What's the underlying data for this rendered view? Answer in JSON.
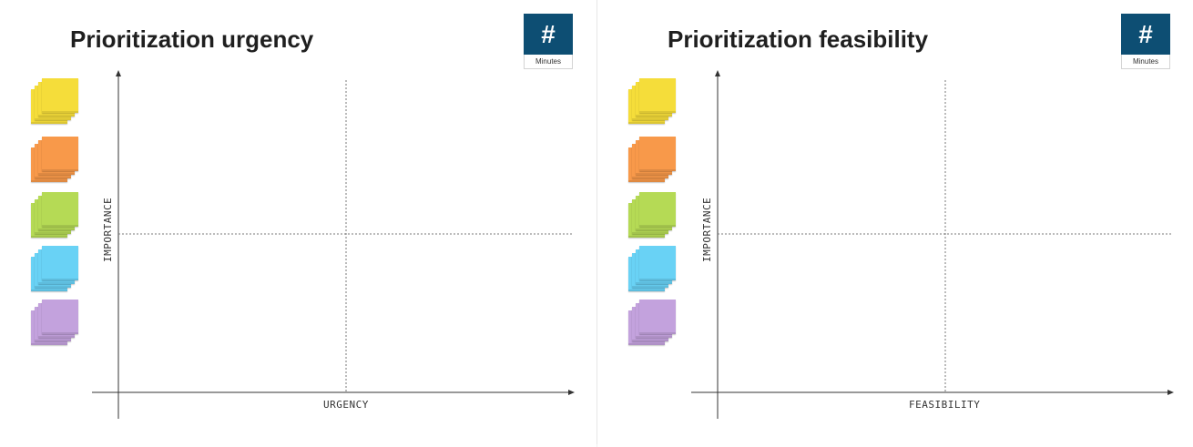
{
  "boards": [
    {
      "title": "Prioritization urgency",
      "timer": {
        "symbol": "#",
        "label": "Minutes"
      },
      "y_axis_label": "IMPORTANCE",
      "x_axis_label": "URGENCY"
    },
    {
      "title": "Prioritization feasibility",
      "timer": {
        "symbol": "#",
        "label": "Minutes"
      },
      "y_axis_label": "IMPORTANCE",
      "x_axis_label": "FEASIBILITY"
    }
  ],
  "sticky_stacks": [
    {
      "name": "yellow-sticky-stack",
      "color": "#f5dd3a"
    },
    {
      "name": "orange-sticky-stack",
      "color": "#f8994a"
    },
    {
      "name": "green-sticky-stack",
      "color": "#b5da55"
    },
    {
      "name": "blue-sticky-stack",
      "color": "#69d2f5"
    },
    {
      "name": "purple-sticky-stack",
      "color": "#c3a2dd"
    }
  ],
  "colors": {
    "timer_background": "#0d4e73",
    "title_text": "#1f1f1f",
    "axis_line": "#333333",
    "quadrant_divider": "#7a7a7a"
  }
}
